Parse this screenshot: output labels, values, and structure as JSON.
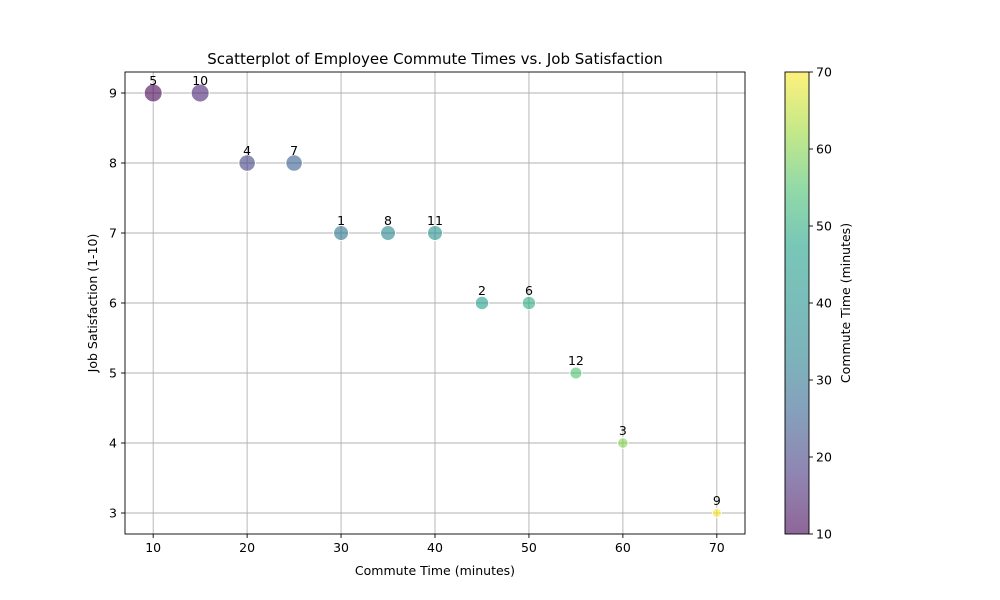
{
  "chart_data": {
    "type": "scatter",
    "title": "Scatterplot of Employee Commute Times vs. Job Satisfaction",
    "xlabel": "Commute Time (minutes)",
    "ylabel": "Job Satisfaction (1-10)",
    "xlim": [
      7,
      73
    ],
    "ylim": [
      2.7,
      9.3
    ],
    "xticks": [
      10,
      20,
      30,
      40,
      50,
      60,
      70
    ],
    "yticks": [
      3,
      4,
      5,
      6,
      7,
      8,
      9
    ],
    "grid": true,
    "points": [
      {
        "label": "1",
        "x": 30,
        "y": 7
      },
      {
        "label": "2",
        "x": 45,
        "y": 6
      },
      {
        "label": "3",
        "x": 60,
        "y": 4
      },
      {
        "label": "4",
        "x": 20,
        "y": 8
      },
      {
        "label": "5",
        "x": 10,
        "y": 9
      },
      {
        "label": "6",
        "x": 50,
        "y": 6
      },
      {
        "label": "7",
        "x": 25,
        "y": 8
      },
      {
        "label": "8",
        "x": 35,
        "y": 7
      },
      {
        "label": "9",
        "x": 70,
        "y": 3
      },
      {
        "label": "10",
        "x": 15,
        "y": 9
      },
      {
        "label": "11",
        "x": 40,
        "y": 7
      },
      {
        "label": "12",
        "x": 55,
        "y": 5
      }
    ],
    "colorbar": {
      "label": "Commute Time (minutes)",
      "colormap": "viridis",
      "range": [
        10,
        70
      ],
      "ticks": [
        10,
        20,
        30,
        40,
        50,
        60,
        70
      ]
    },
    "point_alpha": 0.6
  }
}
